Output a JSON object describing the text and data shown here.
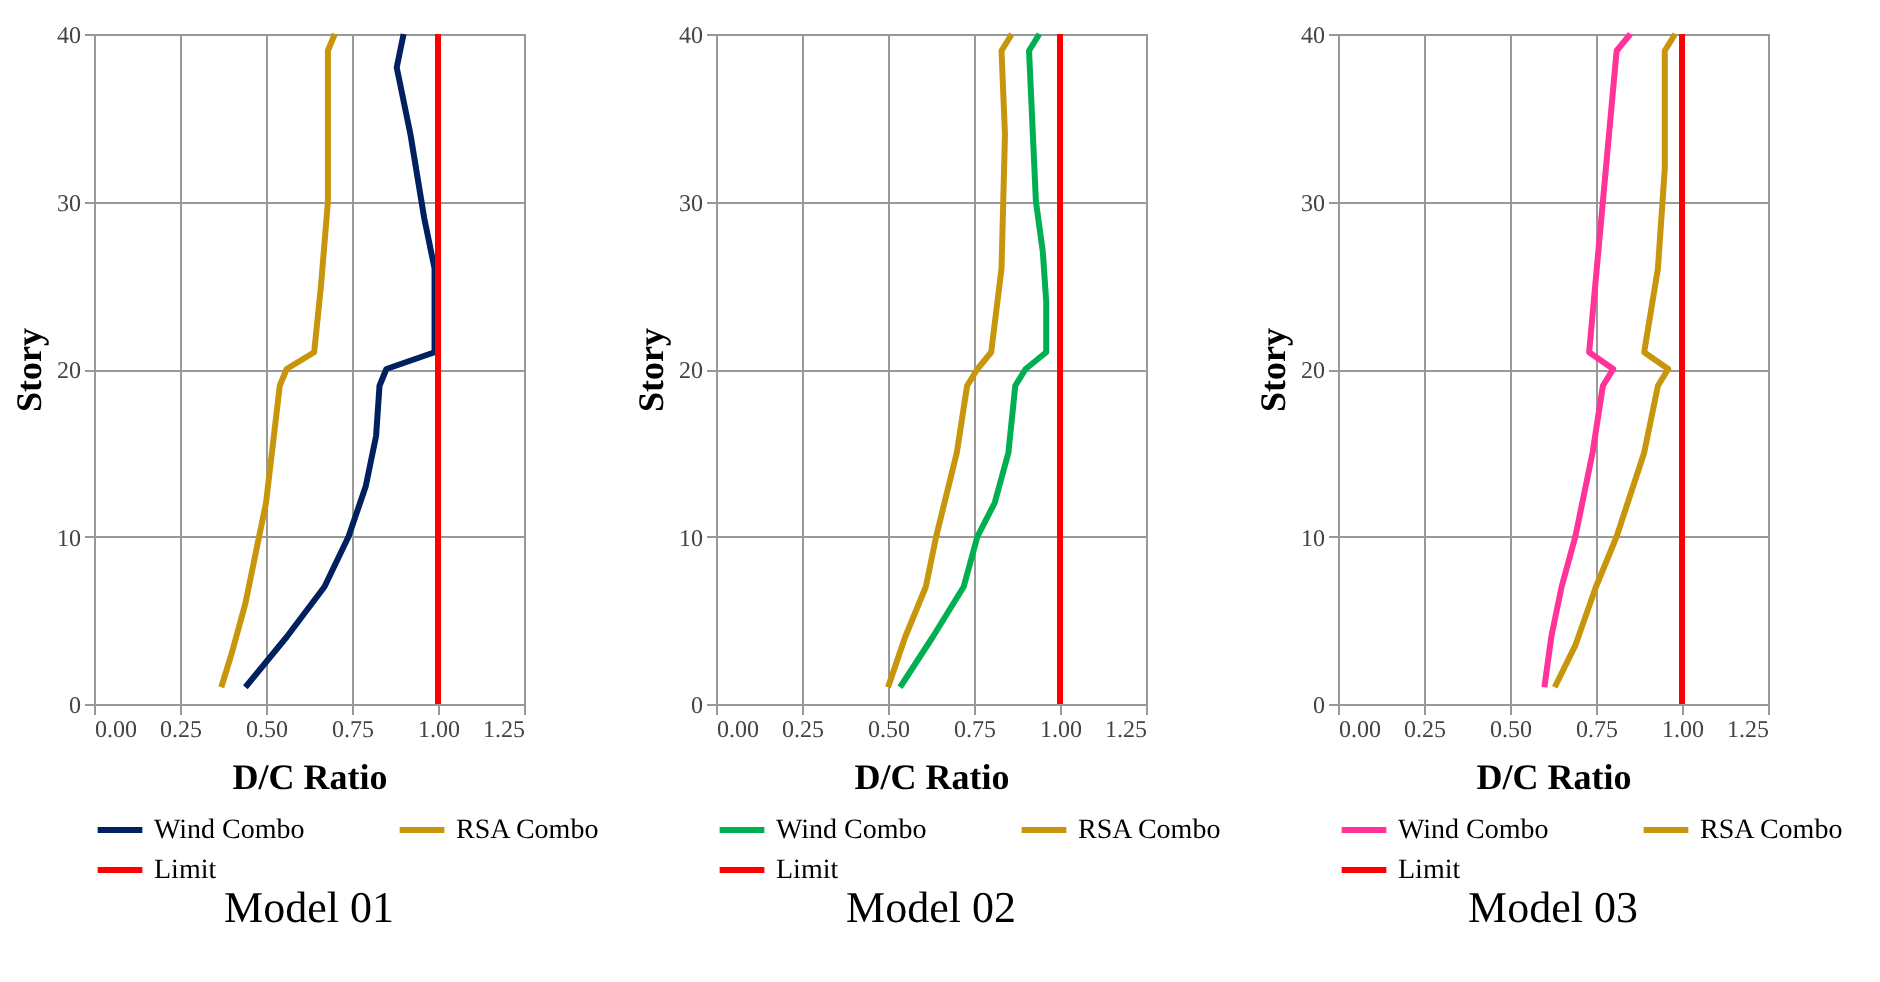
{
  "chart_data": [
    {
      "type": "line",
      "title": "Model 01",
      "xlabel": "D/C Ratio",
      "ylabel": "Story",
      "xlim": [
        0,
        1.25
      ],
      "ylim": [
        0,
        40
      ],
      "xticks": [
        {
          "value": 0,
          "label": "0.00"
        },
        {
          "value": 0.25,
          "label": "0.25"
        },
        {
          "value": 0.5,
          "label": "0.50"
        },
        {
          "value": 0.75,
          "label": "0.75"
        },
        {
          "value": 1,
          "label": "1.00"
        },
        {
          "value": 1.25,
          "label": "1.25"
        }
      ],
      "yticks": [
        0,
        10,
        20,
        30,
        40
      ],
      "grid": true,
      "legend": "bottom",
      "marker": "none",
      "line_style": "solid",
      "series": [
        {
          "name": "Wind Combo",
          "color": "#002060",
          "x": [
            0.44,
            0.56,
            0.67,
            0.74,
            0.79,
            0.82,
            0.83,
            0.85,
            0.99,
            0.99,
            0.96,
            0.92,
            0.88,
            0.9
          ],
          "values": [
            1,
            4,
            7,
            10,
            13,
            16,
            19,
            20,
            21,
            26,
            29,
            34,
            38,
            40
          ]
        },
        {
          "name": "RSA Combo",
          "color": "#c8960c",
          "x": [
            0.37,
            0.4,
            0.44,
            0.47,
            0.5,
            0.54,
            0.56,
            0.64,
            0.66,
            0.68,
            0.68,
            0.7
          ],
          "values": [
            1,
            3,
            6,
            9,
            12,
            19,
            20,
            21,
            25,
            30,
            39,
            40
          ]
        },
        {
          "name": "Limit",
          "color": "#ff0000",
          "x": [
            1,
            1
          ],
          "values": [
            0,
            40
          ]
        }
      ]
    },
    {
      "type": "line",
      "title": "Model 02",
      "xlabel": "D/C Ratio",
      "ylabel": "Story",
      "xlim": [
        0,
        1.25
      ],
      "ylim": [
        0,
        40
      ],
      "xticks": [
        {
          "value": 0,
          "label": "0.00"
        },
        {
          "value": 0.25,
          "label": "0.25"
        },
        {
          "value": 0.5,
          "label": "0.50"
        },
        {
          "value": 0.75,
          "label": "0.75"
        },
        {
          "value": 1,
          "label": "1.00"
        },
        {
          "value": 1.25,
          "label": "1.25"
        }
      ],
      "yticks": [
        0,
        10,
        20,
        30,
        40
      ],
      "grid": true,
      "legend": "bottom",
      "marker": "none",
      "line_style": "solid",
      "series": [
        {
          "name": "Wind Combo",
          "color": "#00b050",
          "x": [
            0.535,
            0.63,
            0.72,
            0.76,
            0.81,
            0.85,
            0.87,
            0.9,
            0.96,
            0.96,
            0.95,
            0.93,
            0.91,
            0.94
          ],
          "values": [
            1,
            4,
            7,
            10,
            12,
            15,
            19,
            20,
            21,
            24,
            27,
            30,
            39,
            40
          ]
        },
        {
          "name": "RSA Combo",
          "color": "#c8960c",
          "x": [
            0.5,
            0.55,
            0.61,
            0.64,
            0.7,
            0.73,
            0.76,
            0.8,
            0.83,
            0.84,
            0.83,
            0.86
          ],
          "values": [
            1,
            4,
            7,
            10,
            15,
            19,
            20,
            21,
            26,
            34,
            39,
            40
          ]
        },
        {
          "name": "Limit",
          "color": "#ff0000",
          "x": [
            1,
            1
          ],
          "values": [
            0,
            40
          ]
        }
      ]
    },
    {
      "type": "line",
      "title": "Model 03",
      "xlabel": "D/C Ratio",
      "ylabel": "Story",
      "xlim": [
        0,
        1.25
      ],
      "ylim": [
        0,
        40
      ],
      "xticks": [
        {
          "value": 0,
          "label": "0.00"
        },
        {
          "value": 0.25,
          "label": "0.25"
        },
        {
          "value": 0.5,
          "label": "0.50"
        },
        {
          "value": 0.75,
          "label": "0.75"
        },
        {
          "value": 1,
          "label": "1.00"
        },
        {
          "value": 1.25,
          "label": "1.25"
        }
      ],
      "yticks": [
        0,
        10,
        20,
        30,
        40
      ],
      "grid": true,
      "legend": "bottom",
      "marker": "none",
      "line_style": "solid",
      "series": [
        {
          "name": "Wind Combo",
          "color": "#ff3399",
          "x": [
            0.6,
            0.62,
            0.65,
            0.69,
            0.74,
            0.77,
            0.8,
            0.73,
            0.77,
            0.81,
            0.85
          ],
          "values": [
            1,
            4,
            7,
            10,
            15,
            19,
            20,
            21,
            30,
            39,
            40
          ]
        },
        {
          "name": "RSA Combo",
          "color": "#c8960c",
          "x": [
            0.63,
            0.69,
            0.75,
            0.81,
            0.89,
            0.93,
            0.96,
            0.89,
            0.93,
            0.95,
            0.95,
            0.98
          ],
          "values": [
            1,
            3.5,
            7,
            10,
            15,
            19,
            20,
            21,
            26,
            32,
            39,
            40
          ]
        },
        {
          "name": "Limit",
          "color": "#ff0000",
          "x": [
            1,
            1
          ],
          "values": [
            0,
            40
          ]
        }
      ]
    }
  ]
}
